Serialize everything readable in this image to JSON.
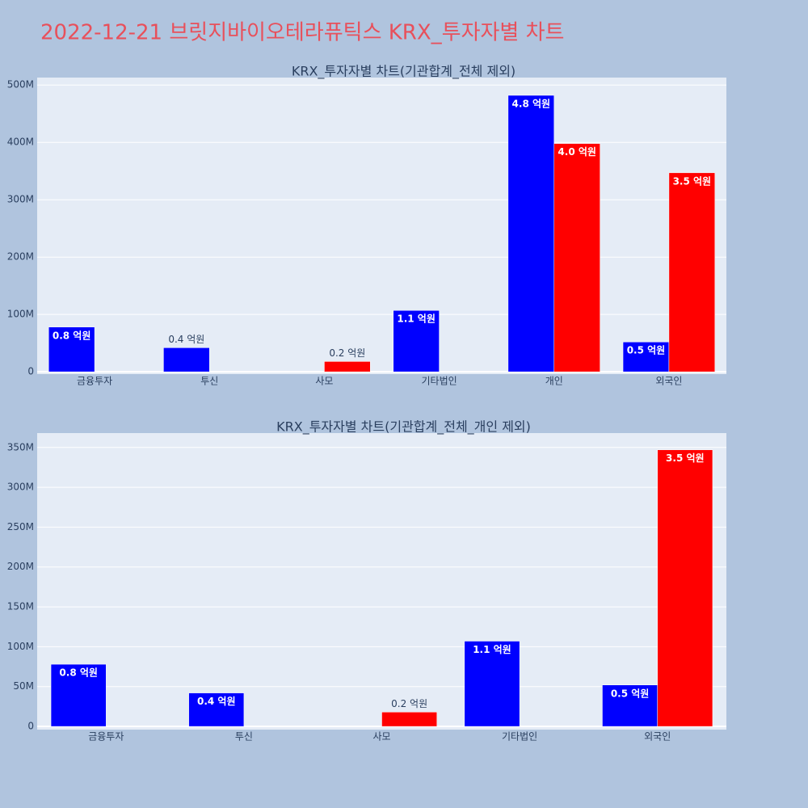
{
  "title": "2022-12-21 브릿지바이오테라퓨틱스 KRX_투자자별 차트",
  "chart_data": [
    {
      "type": "bar",
      "title": "KRX_투자자별 차트(기관합계_전체 제외)",
      "categories": [
        "금융투자",
        "투신",
        "사모",
        "기타법인",
        "개인",
        "외국인"
      ],
      "series": [
        {
          "color": "#0000ff",
          "values": [
            78000000,
            42000000,
            null,
            107000000,
            482000000,
            52000000
          ],
          "value_labels": [
            "0.8 억원",
            "0.4 억원",
            null,
            "1.1 억원",
            "4.8 억원",
            "0.5 억원"
          ]
        },
        {
          "color": "#ff0000",
          "values": [
            null,
            null,
            18000000,
            null,
            398000000,
            347000000
          ],
          "value_labels": [
            null,
            null,
            "0.2 억원",
            null,
            "4.0 억원",
            "3.5 억원"
          ]
        }
      ],
      "ylim": [
        -4000000,
        513000000
      ],
      "yticks": [
        0,
        {
          "value": 100000000,
          "label": "100M"
        },
        {
          "value": 200000000,
          "label": "200M"
        },
        {
          "value": 300000000,
          "label": "300M"
        },
        {
          "value": 400000000,
          "label": "400M"
        },
        {
          "value": 500000000,
          "label": "500M"
        }
      ],
      "grid": true
    },
    {
      "type": "bar",
      "title": "KRX_투자자별 차트(기관합계_전체_개인 제외)",
      "categories": [
        "금융투자",
        "투신",
        "사모",
        "기타법인",
        "외국인"
      ],
      "series": [
        {
          "color": "#0000ff",
          "values": [
            78000000,
            42000000,
            null,
            107000000,
            52000000
          ],
          "value_labels": [
            "0.8 억원",
            "0.4 억원",
            null,
            "1.1 억원",
            "0.5 억원"
          ]
        },
        {
          "color": "#ff0000",
          "values": [
            null,
            null,
            18000000,
            null,
            347000000
          ],
          "value_labels": [
            null,
            null,
            "0.2 억원",
            null,
            "3.5 억원"
          ]
        }
      ],
      "ylim": [
        -4000000,
        368000000
      ],
      "yticks": [
        0,
        {
          "value": 50000000,
          "label": "50M"
        },
        {
          "value": 100000000,
          "label": "100M"
        },
        {
          "value": 150000000,
          "label": "150M"
        },
        {
          "value": 200000000,
          "label": "200M"
        },
        {
          "value": 250000000,
          "label": "250M"
        },
        {
          "value": 300000000,
          "label": "300M"
        },
        {
          "value": 350000000,
          "label": "350M"
        }
      ],
      "grid": true
    }
  ]
}
